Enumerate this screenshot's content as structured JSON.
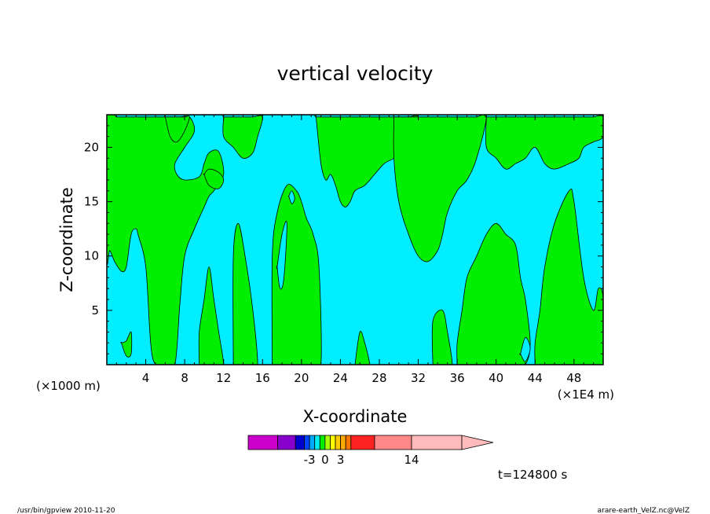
{
  "chart_data": {
    "type": "heatmap",
    "title": "vertical velocity",
    "xlabel": "X-coordinate",
    "ylabel": "Z-coordinate",
    "x_tick_labels": [
      "4",
      "8",
      "12",
      "16",
      "20",
      "24",
      "28",
      "32",
      "36",
      "40",
      "44",
      "48"
    ],
    "x_ticks": [
      4,
      8,
      12,
      16,
      20,
      24,
      28,
      32,
      36,
      40,
      44,
      48
    ],
    "y_tick_labels": [
      "5",
      "10",
      "15",
      "20"
    ],
    "y_ticks": [
      5,
      10,
      15,
      20
    ],
    "xlim": [
      0,
      51
    ],
    "ylim": [
      0,
      23
    ],
    "x_scale_note_left": "(×1000 m)",
    "x_scale_note_right": "(×1E4 m)",
    "grid": false,
    "fill_colors": {
      "negative": "#00eeff",
      "positive": "#00ee00",
      "contour_line": "#000000"
    },
    "regions_positive": [
      {
        "x": [
          0,
          1,
          2,
          3,
          3.5,
          4,
          4.5,
          5,
          6,
          7.5,
          8.5,
          9,
          8,
          7,
          7.2,
          8,
          9.5,
          10,
          10.5,
          11.5,
          12,
          11,
          10.5,
          10,
          9,
          8,
          7.5,
          7,
          6,
          5,
          4.5,
          4,
          3.2,
          3,
          2.5,
          2,
          1.5,
          0.8,
          0.3,
          0
        ],
        "y": [
          22.8,
          22.8,
          22.8,
          22.8,
          22.8,
          22.8,
          22.8,
          22.8,
          22.8,
          22.8,
          22.8,
          21.5,
          20,
          18.5,
          17.5,
          17,
          17.3,
          18.5,
          19.5,
          19.6,
          17.5,
          16,
          15.5,
          14.5,
          12.5,
          10,
          5.5,
          0,
          0,
          0,
          2,
          9,
          12,
          12.5,
          12,
          9,
          8.6,
          9.5,
          10.5,
          10
        ]
      },
      {
        "x": [
          6,
          6.5,
          7,
          8,
          8.5,
          8,
          7.2,
          6.5,
          6
        ],
        "y": [
          22.8,
          22.8,
          22.8,
          22.8,
          22.8,
          21.5,
          20.5,
          21,
          22.8
        ]
      },
      {
        "x": [
          12,
          13,
          14,
          15,
          16,
          15.5,
          15,
          14,
          13,
          12,
          12
        ],
        "y": [
          22.8,
          22.8,
          22.8,
          22.8,
          22.8,
          21,
          19.5,
          19,
          20,
          21,
          22.8
        ]
      },
      {
        "x": [
          9.5,
          10,
          10.5,
          11,
          11.5,
          12,
          11.5,
          11,
          10.5,
          10,
          9.5,
          9.5
        ],
        "y": [
          0,
          0,
          0,
          0,
          0,
          0,
          3,
          6,
          9,
          6,
          3,
          0
        ]
      },
      {
        "x": [
          10,
          10.5,
          11.5,
          12,
          11.5,
          10.5,
          10
        ],
        "y": [
          17.5,
          18,
          17.7,
          17,
          16.2,
          16.5,
          17.5
        ]
      },
      {
        "x": [
          13,
          14,
          15,
          15.5,
          15,
          14.2,
          13.5,
          13,
          13
        ],
        "y": [
          0,
          0,
          0,
          0,
          5,
          10,
          13,
          10,
          0
        ]
      },
      {
        "x": [
          17,
          19,
          21,
          22,
          21.8,
          21.2,
          20.5,
          20,
          19.5,
          18.5,
          17.5,
          17,
          17
        ],
        "y": [
          0,
          0,
          0,
          0,
          9,
          12,
          13.5,
          15,
          16,
          16.5,
          14,
          10,
          0
        ]
      },
      {
        "x": [
          21.5,
          23,
          24,
          24.5,
          25,
          26,
          27,
          28,
          29,
          30,
          31,
          32,
          31.5,
          30.5,
          30,
          29.5,
          28.5,
          27.5,
          26.5,
          25.5,
          25,
          24.5,
          24,
          23.5,
          23,
          22.5,
          22,
          21.5
        ],
        "y": [
          22.8,
          22.8,
          22.8,
          22.8,
          22.8,
          22.8,
          22.8,
          22.8,
          22.8,
          22.8,
          22.8,
          22.8,
          21,
          20,
          19.5,
          19,
          18.5,
          17.5,
          16.5,
          16,
          15,
          14.5,
          15,
          16.5,
          17.5,
          17,
          18.5,
          22.8
        ]
      },
      {
        "x": [
          29.5,
          30,
          30.5,
          31,
          32,
          33,
          34,
          35,
          36,
          37,
          38,
          39,
          38,
          37,
          36,
          35,
          34.5,
          34,
          33,
          32,
          31,
          30,
          29.5,
          29.5
        ],
        "y": [
          22.8,
          22.8,
          22.8,
          22.8,
          22.8,
          22.8,
          22.8,
          22.8,
          22.8,
          22.8,
          22.8,
          22.8,
          19,
          17,
          16,
          14,
          12,
          10.5,
          9.5,
          10,
          12,
          15,
          19,
          22.8
        ]
      },
      {
        "x": [
          36,
          37.5,
          39,
          40.5,
          42,
          43,
          43.5,
          43,
          42.5,
          42,
          41,
          40,
          39,
          38,
          37,
          36.5,
          36,
          36
        ],
        "y": [
          0,
          0,
          0,
          0,
          0,
          0,
          2,
          6,
          8,
          11,
          12,
          13,
          12,
          10,
          8,
          5,
          2,
          0
        ]
      },
      {
        "x": [
          44,
          46,
          48,
          49,
          50.5,
          51,
          51,
          50.5,
          50,
          49,
          48,
          47.5,
          46,
          45,
          44.5,
          44,
          44
        ],
        "y": [
          0,
          0,
          0,
          0,
          0,
          0,
          6,
          7,
          5,
          8,
          15,
          16,
          13,
          9,
          5,
          2,
          0
        ]
      },
      {
        "x": [
          39,
          41,
          43,
          45,
          46,
          47,
          48,
          49,
          50,
          51,
          51,
          50,
          49,
          48.5,
          47.5,
          46,
          45,
          44,
          43,
          42,
          41,
          40,
          39,
          39
        ],
        "y": [
          22.8,
          22.8,
          22.8,
          22.8,
          22.8,
          22.8,
          22.8,
          22.8,
          22.8,
          22.8,
          21,
          20.5,
          20,
          19,
          18.5,
          18,
          18.5,
          20,
          19,
          18.5,
          18,
          19,
          20,
          22.8
        ]
      },
      {
        "x": [
          33.5,
          34.5,
          35,
          35.5,
          35,
          34.5,
          33.5,
          33.5
        ],
        "y": [
          0,
          0,
          0,
          0,
          3,
          5,
          4,
          0
        ]
      },
      {
        "x": [
          25.5,
          26,
          26.5,
          27,
          26.5,
          26,
          25.5
        ],
        "y": [
          0,
          0,
          0,
          0,
          2,
          3,
          0
        ]
      },
      {
        "x": [
          1.5,
          2,
          2.5,
          2.5,
          2,
          1.5
        ],
        "y": [
          2,
          2.2,
          3,
          1,
          0.8,
          2
        ]
      }
    ],
    "regions_negative": [
      {
        "x": [
          17.5,
          18,
          18.5,
          18.2,
          17.8,
          17.5
        ],
        "y": [
          9,
          12,
          13,
          8,
          7,
          9
        ]
      },
      {
        "x": [
          18.7,
          19,
          19.3,
          19,
          18.7
        ],
        "y": [
          15.5,
          16,
          15.3,
          14.8,
          15.5
        ]
      },
      {
        "x": [
          42.5,
          43,
          43.5,
          43,
          42.5
        ],
        "y": [
          1,
          2.5,
          1.5,
          0.3,
          1
        ]
      }
    ],
    "colorbar": {
      "colors": [
        "#ff00ff",
        "#cc00cc",
        "#8800cc",
        "#0000cc",
        "#0044ff",
        "#00aaff",
        "#00eeee",
        "#00ee00",
        "#aaff00",
        "#ffff00",
        "#ffcc00",
        "#ffaa00",
        "#ff7700",
        "#ff2222",
        "#ff8888",
        "#ffbbbb"
      ],
      "tick_labels": [
        "-3",
        "0",
        "3",
        "14"
      ],
      "tick_positions": [
        -3,
        0,
        3,
        14
      ],
      "scale": [
        -12,
        -9,
        -6,
        -4,
        -3,
        -2,
        -1,
        0,
        1,
        2,
        3,
        4,
        7,
        10,
        14,
        20,
        26
      ]
    }
  },
  "annotations": {
    "time_label": "t=124800 s",
    "footer_left": "/usr/bin/gpview   2010-11-20",
    "footer_right": "arare-earth_VelZ.nc@VelZ"
  }
}
